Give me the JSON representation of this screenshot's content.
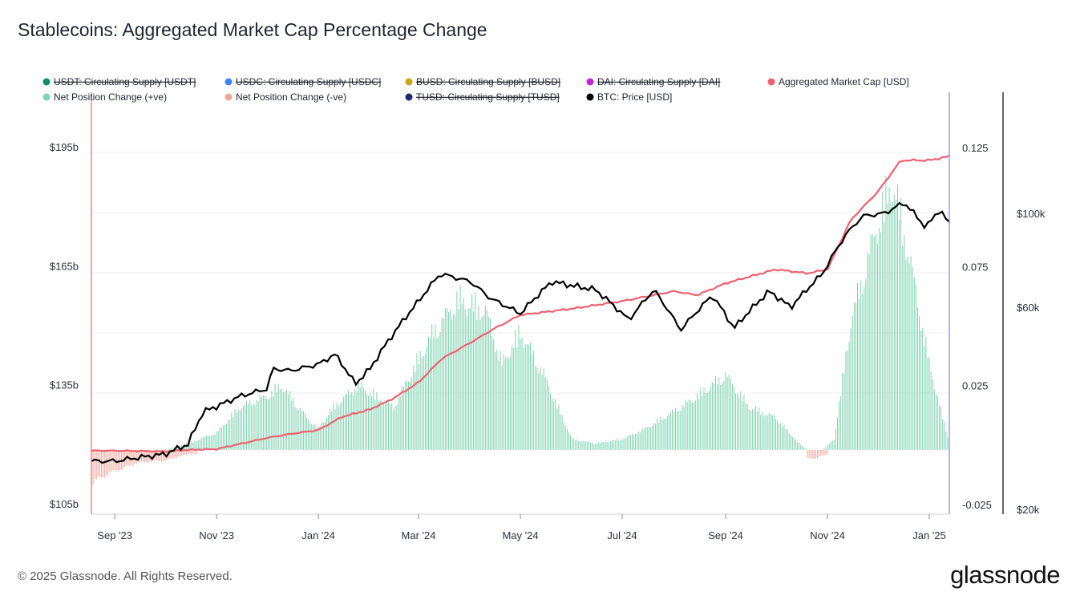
{
  "title": "Stablecoins: Aggregated Market Cap Percentage Change",
  "footer": {
    "copyright": "© 2025 Glassnode. All Rights Reserved.",
    "logo": "glassnode"
  },
  "chart_data": {
    "type": "area",
    "title": "Stablecoins: Aggregated Market Cap Percentage Change",
    "legend": [
      {
        "label": "USDT: Circulating Supply [USDT]",
        "color": "#0f8a6a",
        "hidden": true
      },
      {
        "label": "USDC: Circulating Supply [USDC]",
        "color": "#3b82f6",
        "hidden": true
      },
      {
        "label": "BUSD: Circulating Supply [BUSD]",
        "color": "#c9a616",
        "hidden": true
      },
      {
        "label": "DAI: Circulating Supply [DAI]",
        "color": "#c026d3",
        "hidden": true
      },
      {
        "label": "Aggregated Market Cap [USD]",
        "color": "#f0606e",
        "hidden": false
      },
      {
        "label": "Net Position Change (+ve)",
        "color": "#7fd3b0",
        "hidden": false
      },
      {
        "label": "Net Position Change (-ve)",
        "color": "#f5a59a",
        "hidden": false
      },
      {
        "label": "TUSD: Circulating Supply [TUSD]",
        "color": "#1e2a78",
        "hidden": true
      },
      {
        "label": "BTC: Price [USD]",
        "color": "#000000",
        "hidden": false
      }
    ],
    "x_ticks": [
      "Sep '23",
      "Nov '23",
      "Jan '24",
      "Mar '24",
      "May '24",
      "Jul '24",
      "Sep '24",
      "Nov '24",
      "Jan '25"
    ],
    "x_tick_dates": [
      "2023-09-01",
      "2023-11-01",
      "2024-01-01",
      "2024-03-01",
      "2024-05-01",
      "2024-07-01",
      "2024-09-01",
      "2024-11-01",
      "2025-01-01"
    ],
    "x_range": [
      "2023-08-18",
      "2025-01-13"
    ],
    "left_axis": {
      "ticks": [
        "$105b",
        "$135b",
        "$165b",
        "$195b"
      ],
      "tick_values": [
        105,
        135,
        165,
        195
      ],
      "range": [
        105,
        195
      ]
    },
    "right_axis": {
      "ticks": [
        "-0.025",
        "0.025",
        "0.075",
        "0.125"
      ],
      "tick_values": [
        -0.025,
        0.025,
        0.075,
        0.125
      ],
      "range": [
        -0.025,
        0.125
      ]
    },
    "price_axis": {
      "ticks": [
        "$20k",
        "$60k",
        "$100k"
      ],
      "tick_values": [
        20000,
        60000,
        100000
      ],
      "scale": "log"
    },
    "series": [
      {
        "name": "Aggregated Market Cap [USD]",
        "axis": "left",
        "color": "#f0606e",
        "points": [
          [
            "2023-08-18",
            119.8
          ],
          [
            "2023-09-01",
            119.8
          ],
          [
            "2023-10-01",
            119.6
          ],
          [
            "2023-10-15",
            120.0
          ],
          [
            "2023-11-01",
            120.2
          ],
          [
            "2023-11-15",
            121.5
          ],
          [
            "2023-12-01",
            123.0
          ],
          [
            "2023-12-15",
            124.0
          ],
          [
            "2024-01-01",
            125.0
          ],
          [
            "2024-01-15",
            128.3
          ],
          [
            "2024-02-01",
            130.2
          ],
          [
            "2024-02-15",
            133.0
          ],
          [
            "2024-03-01",
            137.0
          ],
          [
            "2024-03-15",
            143.0
          ],
          [
            "2024-04-01",
            147.0
          ],
          [
            "2024-04-15",
            150.5
          ],
          [
            "2024-05-01",
            154.0
          ],
          [
            "2024-06-01",
            155.6
          ],
          [
            "2024-07-01",
            157.5
          ],
          [
            "2024-08-01",
            160.0
          ],
          [
            "2024-08-15",
            159.0
          ],
          [
            "2024-09-01",
            162.0
          ],
          [
            "2024-10-01",
            165.5
          ],
          [
            "2024-10-20",
            164.5
          ],
          [
            "2024-11-01",
            165.5
          ],
          [
            "2024-11-15",
            178.0
          ],
          [
            "2024-12-01",
            185.0
          ],
          [
            "2024-12-15",
            193.0
          ],
          [
            "2025-01-01",
            193.0
          ],
          [
            "2025-01-13",
            194.0
          ]
        ]
      },
      {
        "name": "BTC: Price [USD]",
        "axis": "price",
        "color": "#000000",
        "points": [
          [
            "2023-08-18",
            26000
          ],
          [
            "2023-09-01",
            26000
          ],
          [
            "2023-09-15",
            26500
          ],
          [
            "2023-10-01",
            27000
          ],
          [
            "2023-10-15",
            28500
          ],
          [
            "2023-10-24",
            34000
          ],
          [
            "2023-11-01",
            35000
          ],
          [
            "2023-11-15",
            37000
          ],
          [
            "2023-12-01",
            38500
          ],
          [
            "2023-12-05",
            43000
          ],
          [
            "2023-12-15",
            42500
          ],
          [
            "2024-01-01",
            44000
          ],
          [
            "2024-01-11",
            46500
          ],
          [
            "2024-01-23",
            39500
          ],
          [
            "2024-02-01",
            43000
          ],
          [
            "2024-02-15",
            52000
          ],
          [
            "2024-03-01",
            62000
          ],
          [
            "2024-03-14",
            72000
          ],
          [
            "2024-04-01",
            69000
          ],
          [
            "2024-04-13",
            63000
          ],
          [
            "2024-05-01",
            58000
          ],
          [
            "2024-05-20",
            69000
          ],
          [
            "2024-06-01",
            67500
          ],
          [
            "2024-06-15",
            66000
          ],
          [
            "2024-07-05",
            56000
          ],
          [
            "2024-07-20",
            66000
          ],
          [
            "2024-08-05",
            53000
          ],
          [
            "2024-08-24",
            64000
          ],
          [
            "2024-09-06",
            53500
          ],
          [
            "2024-09-27",
            65500
          ],
          [
            "2024-10-10",
            60000
          ],
          [
            "2024-10-29",
            72000
          ],
          [
            "2024-11-12",
            89000
          ],
          [
            "2024-11-22",
            98500
          ],
          [
            "2024-12-05",
            100000
          ],
          [
            "2024-12-17",
            106000
          ],
          [
            "2024-12-30",
            92500
          ],
          [
            "2025-01-07",
            102000
          ],
          [
            "2025-01-13",
            94500
          ]
        ]
      },
      {
        "name": "Net Position Change (+ve)",
        "axis": "right",
        "color": "#7fd3b0",
        "points": [
          [
            "2023-10-01",
            0.0
          ],
          [
            "2023-10-15",
            0.003
          ],
          [
            "2023-11-01",
            0.008
          ],
          [
            "2023-11-15",
            0.02
          ],
          [
            "2023-12-01",
            0.025
          ],
          [
            "2023-12-10",
            0.03
          ],
          [
            "2023-12-25",
            0.015
          ],
          [
            "2024-01-01",
            0.01
          ],
          [
            "2024-01-10",
            0.02
          ],
          [
            "2024-01-25",
            0.03
          ],
          [
            "2024-02-15",
            0.02
          ],
          [
            "2024-02-25",
            0.035
          ],
          [
            "2024-03-10",
            0.055
          ],
          [
            "2024-03-25",
            0.07
          ],
          [
            "2024-04-10",
            0.065
          ],
          [
            "2024-04-20",
            0.04
          ],
          [
            "2024-05-01",
            0.055
          ],
          [
            "2024-05-15",
            0.035
          ],
          [
            "2024-06-01",
            0.005
          ],
          [
            "2024-06-15",
            0.003
          ],
          [
            "2024-07-01",
            0.005
          ],
          [
            "2024-07-15",
            0.01
          ],
          [
            "2024-08-01",
            0.018
          ],
          [
            "2024-08-15",
            0.025
          ],
          [
            "2024-09-01",
            0.035
          ],
          [
            "2024-09-15",
            0.02
          ],
          [
            "2024-10-01",
            0.015
          ],
          [
            "2024-10-15",
            0.003
          ],
          [
            "2024-10-25",
            -0.003
          ],
          [
            "2024-11-05",
            0.005
          ],
          [
            "2024-11-15",
            0.06
          ],
          [
            "2024-12-01",
            0.105
          ],
          [
            "2024-12-10",
            0.125
          ],
          [
            "2024-12-20",
            0.09
          ],
          [
            "2025-01-01",
            0.04
          ],
          [
            "2025-01-13",
            0.003
          ]
        ]
      },
      {
        "name": "Net Position Change (-ve)",
        "axis": "right",
        "color": "#f5a59a",
        "points": [
          [
            "2023-08-18",
            -0.015
          ],
          [
            "2023-09-01",
            -0.01
          ],
          [
            "2023-09-15",
            -0.006
          ],
          [
            "2023-10-01",
            -0.005
          ],
          [
            "2023-10-15",
            -0.002
          ],
          [
            "2024-10-25",
            -0.004
          ],
          [
            "2024-11-01",
            -0.002
          ]
        ]
      }
    ]
  }
}
